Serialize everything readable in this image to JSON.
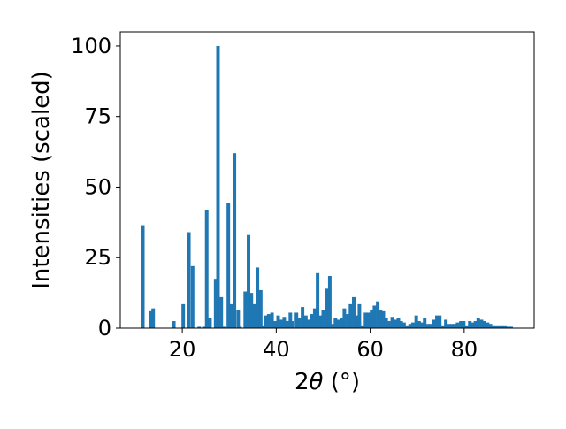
{
  "chart_data": {
    "type": "bar",
    "xlabel_prefix": "2",
    "xlabel_symbol": "θ",
    "xlabel_unit": " (°)",
    "ylabel": "Intensities (scaled)",
    "xlim": [
      6.8,
      94.9
    ],
    "ylim": [
      0,
      105
    ],
    "xticks": [
      20,
      40,
      60,
      80
    ],
    "yticks": [
      0,
      25,
      50,
      75,
      100
    ],
    "bar_width": 0.75,
    "color": "#1f77b4",
    "grid": false,
    "legend": "none",
    "x": [
      11.6,
      13.3,
      13.8,
      18.2,
      20.2,
      21.4,
      22.2,
      23.6,
      24.6,
      25.2,
      25.9,
      27.1,
      27.6,
      28.3,
      29.0,
      29.8,
      30.5,
      31.1,
      31.9,
      32.3,
      33.4,
      34.1,
      34.7,
      35.3,
      36.0,
      36.7,
      37.1,
      37.8,
      38.4,
      39.1,
      39.8,
      40.4,
      41.1,
      41.7,
      42.3,
      43.0,
      43.5,
      44.3,
      44.9,
      45.6,
      46.3,
      46.9,
      47.6,
      48.2,
      48.8,
      49.4,
      50.0,
      50.7,
      51.4,
      52.0,
      52.6,
      53.2,
      53.9,
      54.5,
      55.2,
      55.8,
      56.5,
      57.1,
      57.7,
      58.3,
      59.0,
      59.6,
      60.3,
      60.9,
      61.6,
      62.2,
      62.8,
      63.4,
      64.0,
      64.7,
      65.3,
      66.0,
      66.6,
      67.2,
      67.8,
      68.5,
      69.1,
      69.8,
      70.4,
      71.0,
      71.6,
      72.3,
      72.9,
      73.6,
      74.2,
      74.8,
      75.5,
      76.1,
      76.8,
      77.4,
      78.0,
      78.6,
      79.3,
      79.9,
      80.5,
      81.2,
      81.8,
      82.4,
      83.0,
      83.7,
      84.3,
      85.0,
      85.6,
      86.2,
      86.8,
      87.5,
      88.1,
      88.7,
      89.4,
      90.0
    ],
    "values": [
      36.5,
      6.0,
      7.0,
      2.5,
      8.5,
      34.0,
      22.0,
      0.5,
      0.5,
      42.0,
      3.5,
      17.5,
      100.0,
      11.0,
      0.5,
      44.5,
      8.5,
      62.0,
      6.5,
      0.5,
      13.0,
      33.0,
      12.5,
      8.5,
      21.5,
      13.5,
      1.0,
      4.5,
      5.0,
      5.5,
      2.5,
      4.5,
      3.0,
      4.0,
      2.5,
      5.5,
      2.5,
      5.5,
      3.5,
      7.5,
      4.5,
      3.0,
      5.0,
      7.0,
      19.5,
      4.5,
      6.5,
      14.0,
      18.5,
      1.5,
      3.5,
      3.0,
      3.5,
      7.0,
      5.0,
      8.5,
      11.0,
      4.5,
      8.5,
      1.0,
      5.5,
      5.5,
      6.5,
      8.0,
      9.5,
      6.5,
      6.0,
      3.5,
      2.5,
      4.0,
      3.0,
      3.5,
      2.5,
      2.0,
      1.0,
      1.5,
      2.0,
      4.5,
      2.5,
      2.0,
      3.5,
      1.5,
      1.5,
      3.0,
      4.5,
      4.5,
      1.0,
      3.0,
      1.5,
      1.5,
      1.5,
      2.0,
      2.5,
      2.5,
      1.0,
      2.5,
      2.0,
      2.5,
      3.5,
      3.0,
      2.5,
      2.0,
      1.5,
      1.0,
      1.0,
      1.0,
      1.0,
      1.0,
      0.5,
      0.5
    ]
  }
}
